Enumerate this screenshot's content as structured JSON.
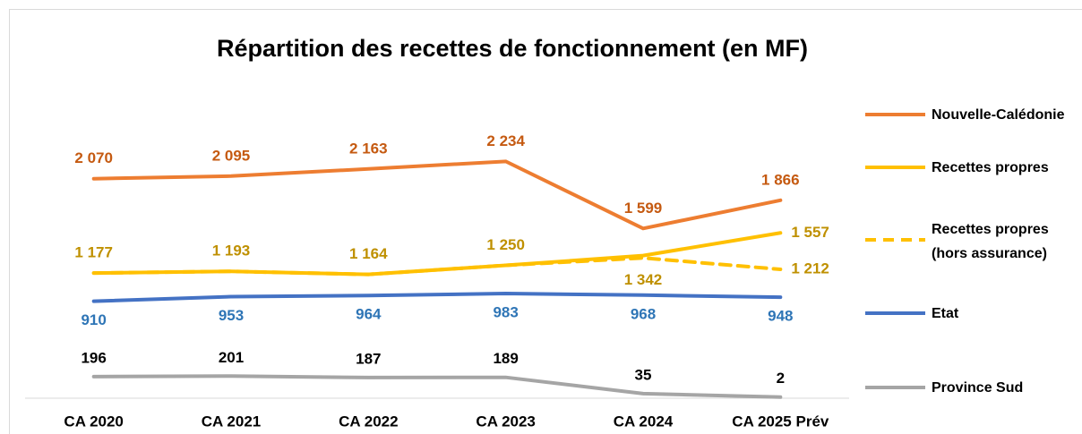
{
  "chart_data": {
    "type": "line",
    "title": "Répartition des recettes de fonctionnement (en MF)",
    "categories": [
      "CA 2020",
      "CA 2021",
      "CA 2022",
      "CA 2023",
      "CA 2024",
      "CA 2025 Prév"
    ],
    "ylim": [
      0,
      3000
    ],
    "series": [
      {
        "name": "Nouvelle-Calédonie",
        "color": "#ed7d31",
        "label_color": "#c55a11",
        "values": [
          2070,
          2095,
          2163,
          2234,
          1599,
          1866
        ],
        "value_labels": [
          "2 070",
          "2 095",
          "2 163",
          "2 234",
          "1 599",
          "1 866"
        ]
      },
      {
        "name": "Recettes propres",
        "color": "#ffc000",
        "label_color": "#bf9000",
        "values": [
          1177,
          1193,
          1164,
          1250,
          1342,
          1557
        ],
        "value_labels": [
          "1 177",
          "1 193",
          "1 164",
          "1 250",
          "1 342",
          "1 557"
        ]
      },
      {
        "name": "Recettes propres (hors assurance)",
        "color": "#ffc000",
        "label_color": "#bf9000",
        "dashed": true,
        "values": [
          1177,
          1193,
          1164,
          1250,
          1320,
          1212
        ],
        "value_labels": [
          null,
          null,
          null,
          null,
          null,
          "1 212"
        ]
      },
      {
        "name": "Etat",
        "color": "#4472c4",
        "label_color": "#2e75b6",
        "values": [
          910,
          953,
          964,
          983,
          968,
          948
        ],
        "value_labels": [
          "910",
          "953",
          "964",
          "983",
          "968",
          "948"
        ]
      },
      {
        "name": "Province Sud",
        "color": "#a5a5a5",
        "label_color": "#000000",
        "values": [
          196,
          201,
          187,
          189,
          35,
          2
        ],
        "value_labels": [
          "196",
          "201",
          "187",
          "189",
          "35",
          "2"
        ]
      }
    ]
  }
}
